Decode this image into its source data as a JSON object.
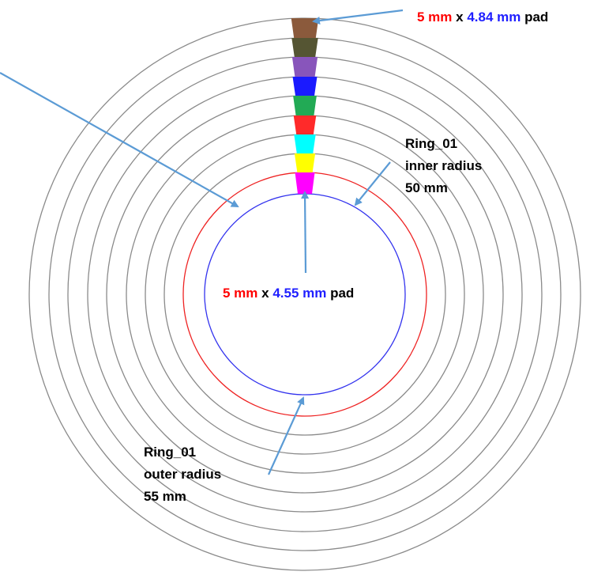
{
  "diagram": {
    "outer_pad_label": {
      "red": "5 mm",
      "sep": " x ",
      "blue": "4.84 mm",
      "suffix": " pad"
    },
    "inner_pad_label": {
      "red": "5 mm",
      "sep": " x ",
      "blue": "4.55 mm",
      "suffix": " pad"
    },
    "inner_radius_label": [
      "Ring_01",
      "inner radius",
      "50 mm"
    ],
    "outer_radius_label": [
      "Ring_01",
      "outer radius",
      "55 mm"
    ],
    "colors": {
      "ring_inner": "#3333ee",
      "ring_outer": "#ee2222",
      "rings_other": "#8a8a8a",
      "arrow": "#5b9bd5",
      "pads": [
        "#ff00ff",
        "#ffff00",
        "#00ffff",
        "#ff2a2a",
        "#22aa55",
        "#1a1aff",
        "#8855bb",
        "#555533",
        "#8b5a3c"
      ]
    }
  }
}
